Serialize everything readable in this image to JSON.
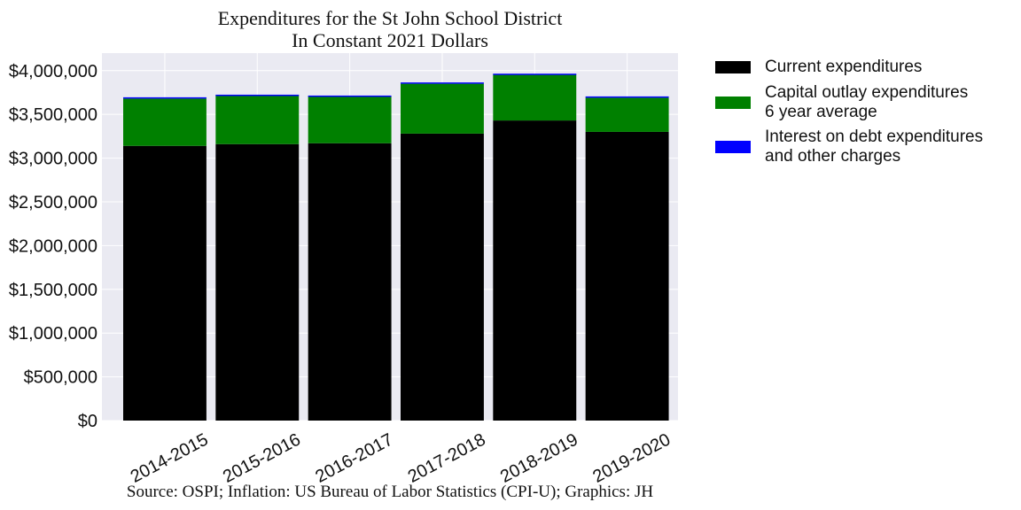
{
  "chart_data": {
    "type": "bar",
    "stacked": true,
    "title": [
      "Expenditures for the St John School District",
      "In Constant 2021 Dollars"
    ],
    "categories": [
      "2014-2015",
      "2015-2016",
      "2016-2017",
      "2017-2018",
      "2018-2019",
      "2019-2020"
    ],
    "series": [
      {
        "key": "current",
        "name": "Current expenditures",
        "color": "#000000",
        "values": [
          3140000,
          3160000,
          3170000,
          3280000,
          3430000,
          3300000
        ]
      },
      {
        "key": "capital",
        "name": [
          "Capital outlay expenditures",
          "6 year average"
        ],
        "color": "#008000",
        "values": [
          540000,
          560000,
          540000,
          570000,
          530000,
          390000
        ]
      },
      {
        "key": "interest",
        "name": [
          "Interest on debt expenditures",
          "and other charges"
        ],
        "color": "#0000ff",
        "values": [
          15000,
          5000,
          5000,
          15000,
          5000,
          15000
        ]
      }
    ],
    "ylim": [
      0,
      4200000
    ],
    "yticks": [
      0,
      500000,
      1000000,
      1500000,
      2000000,
      2500000,
      3000000,
      3500000,
      4000000
    ],
    "ytick_labels": [
      "$0",
      "$500,000",
      "$1,000,000",
      "$1,500,000",
      "$2,000,000",
      "$2,500,000",
      "$3,000,000",
      "$3,500,000",
      "$4,000,000"
    ],
    "grid": true,
    "legend_position": "outside-right",
    "background_color": "#eaeaf2",
    "xlabel": "",
    "ylabel": "",
    "source": "Source: OSPI; Inflation: US Bureau of Labor Statistics (CPI-U); Graphics: JH"
  }
}
